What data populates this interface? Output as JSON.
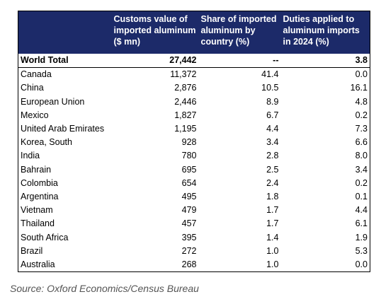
{
  "table": {
    "headers": [
      [
        "Customs value of",
        "imported aluminum",
        "($ mn)"
      ],
      [
        "Share of imported",
        "aluminum by",
        "country (%)"
      ],
      [
        "Duties applied to",
        "aluminum imports",
        "in 2024 (%)"
      ]
    ],
    "rows": [
      [
        "World Total",
        "27,442",
        "--",
        "3.8"
      ],
      [
        "Canada",
        "11,372",
        "41.4",
        "0.0"
      ],
      [
        "China",
        "2,876",
        "10.5",
        "16.1"
      ],
      [
        "European Union",
        "2,446",
        "8.9",
        "4.8"
      ],
      [
        "Mexico",
        "1,827",
        "6.7",
        "0.2"
      ],
      [
        "United Arab Emirates",
        "1,195",
        "4.4",
        "7.3"
      ],
      [
        "Korea, South",
        "928",
        "3.4",
        "6.6"
      ],
      [
        "India",
        "780",
        "2.8",
        "8.0"
      ],
      [
        "Bahrain",
        "695",
        "2.5",
        "3.4"
      ],
      [
        "Colombia",
        "654",
        "2.4",
        "0.2"
      ],
      [
        "Argentina",
        "495",
        "1.8",
        "0.1"
      ],
      [
        "Vietnam",
        "479",
        "1.7",
        "4.4"
      ],
      [
        "Thailand",
        "457",
        "1.7",
        "6.1"
      ],
      [
        "South Africa",
        "395",
        "1.4",
        "1.9"
      ],
      [
        "Brazil",
        "272",
        "1.0",
        "5.3"
      ],
      [
        "Australia",
        "268",
        "1.0",
        "0.0"
      ]
    ]
  },
  "source": "Source: Oxford Economics/Census Bureau"
}
